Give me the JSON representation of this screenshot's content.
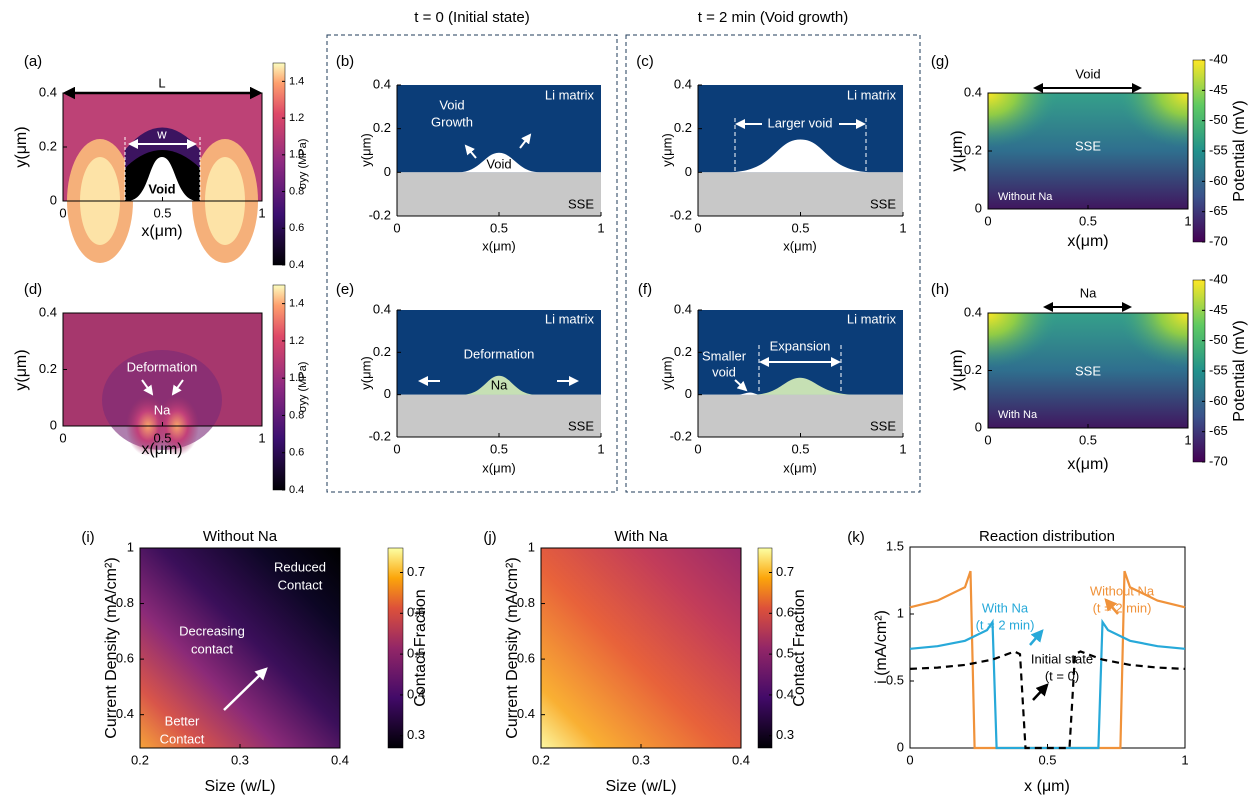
{
  "headers": [
    "t = 0 (Initial state)",
    "t = 2 min (Void growth)"
  ],
  "chart_data": [
    {
      "type": "contour",
      "panel": "(a)",
      "xlabel": "x(μm)",
      "ylabel": "y(μm)",
      "xlim": [
        0,
        1
      ],
      "ylim": [
        0,
        0.4
      ],
      "xticks": [
        0,
        0.5,
        1
      ],
      "yticks": [
        0,
        0.2,
        0.4
      ],
      "colorbar": {
        "label": "σyy (MPa)",
        "colormap": "magma",
        "lim": [
          0.4,
          1.5
        ],
        "ticks": [
          0.4,
          0.6,
          0.8,
          {
            "value": 1,
            "label": "1.0"
          },
          1.2,
          1.4
        ]
      },
      "annotations": [
        "L",
        "w",
        "Void"
      ]
    },
    {
      "type": "contour",
      "panel": "(d)",
      "xlabel": "x(μm)",
      "ylabel": "y(μm)",
      "xlim": [
        0,
        1
      ],
      "ylim": [
        0,
        0.4
      ],
      "xticks": [
        0,
        0.5,
        1
      ],
      "yticks": [
        0,
        0.2,
        0.4
      ],
      "colorbar": {
        "label": "σyy (MPa)",
        "colormap": "magma",
        "lim": [
          0.4,
          1.5
        ],
        "ticks": [
          0.4,
          0.6,
          0.8,
          {
            "value": 1,
            "label": "1.0"
          },
          1.2,
          1.4
        ]
      },
      "annotations": [
        "Deformation",
        "Na"
      ]
    },
    {
      "type": "contour",
      "panel": "(g)",
      "xlabel": "x(μm)",
      "ylabel": "y(μm)",
      "xlim": [
        0,
        1
      ],
      "ylim": [
        0,
        0.4
      ],
      "xticks": [
        0,
        0.5,
        1
      ],
      "yticks": [
        0,
        0.2,
        0.4
      ],
      "colorbar": {
        "label": "Potential (mV)",
        "colormap": "viridis",
        "lim": [
          -70,
          -40
        ],
        "ticks": [
          -70,
          -65,
          -60,
          -55,
          -50,
          -45,
          -40
        ]
      },
      "annotations": [
        "Void",
        "SSE",
        "Without Na"
      ]
    },
    {
      "type": "contour",
      "panel": "(h)",
      "xlabel": "x(μm)",
      "ylabel": "y(μm)",
      "xlim": [
        0,
        1
      ],
      "ylim": [
        0,
        0.4
      ],
      "xticks": [
        0,
        0.5,
        1
      ],
      "yticks": [
        0,
        0.2,
        0.4
      ],
      "colorbar": {
        "label": "Potential (mV)",
        "colormap": "viridis",
        "lim": [
          -70,
          -40
        ],
        "ticks": [
          -70,
          -65,
          -60,
          -55,
          -50,
          -45,
          -40
        ]
      },
      "annotations": [
        "Na",
        "SSE",
        "With Na"
      ]
    },
    {
      "type": "schematic",
      "panel": "(b)",
      "xlabel": "x(μm)",
      "ylabel": "y(μm)",
      "xlim": [
        0,
        1
      ],
      "ylim": [
        -0.2,
        0.4
      ],
      "xticks": [
        0,
        0.5,
        1
      ],
      "yticks": [
        -0.2,
        0,
        0.2,
        0.4
      ],
      "annotations": [
        "Li matrix",
        "Void",
        "Growth",
        "Void",
        "SSE"
      ]
    },
    {
      "type": "schematic",
      "panel": "(c)",
      "xlabel": "x(μm)",
      "ylabel": "y(μm)",
      "xlim": [
        0,
        1
      ],
      "ylim": [
        -0.2,
        0.4
      ],
      "xticks": [
        0,
        0.5,
        1
      ],
      "yticks": [
        -0.2,
        0,
        0.2,
        0.4
      ],
      "annotations": [
        "Li matrix",
        "Larger void",
        "SSE"
      ]
    },
    {
      "type": "schematic",
      "panel": "(e)",
      "xlabel": "x(μm)",
      "ylabel": "y(μm)",
      "xlim": [
        0,
        1
      ],
      "ylim": [
        -0.2,
        0.4
      ],
      "xticks": [
        0,
        0.5,
        1
      ],
      "yticks": [
        -0.2,
        0,
        0.2,
        0.4
      ],
      "annotations": [
        "Li matrix",
        "Deformation",
        "Na",
        "SSE"
      ]
    },
    {
      "type": "schematic",
      "panel": "(f)",
      "xlabel": "x(μm)",
      "ylabel": "y(μm)",
      "xlim": [
        0,
        1
      ],
      "ylim": [
        -0.2,
        0.4
      ],
      "xticks": [
        0,
        0.5,
        1
      ],
      "yticks": [
        -0.2,
        0,
        0.2,
        0.4
      ],
      "annotations": [
        "Li matrix",
        "Smaller",
        "void",
        "Expansion",
        "SSE"
      ]
    },
    {
      "type": "heatmap",
      "panel": "(i)",
      "title": "Without Na",
      "xlabel": "Size (w/L)",
      "ylabel": "Current Density (mA/cm²)",
      "xlim": [
        0.2,
        0.4
      ],
      "ylim": [
        0.28,
        1
      ],
      "xticks": [
        0.2,
        0.3,
        0.4
      ],
      "yticks": [
        0.4,
        0.6,
        0.8,
        1
      ],
      "colorbar": {
        "label": "Contact Fraction",
        "colormap": "inferno",
        "lim": [
          0.27,
          0.76
        ],
        "ticks": [
          0.3,
          0.4,
          0.5,
          0.6,
          0.7
        ]
      },
      "annotations": [
        "Reduced",
        "Contact",
        "Decreasing",
        "contact",
        "Better",
        "Contact"
      ]
    },
    {
      "type": "heatmap",
      "panel": "(j)",
      "title": "With Na",
      "xlabel": "Size (w/L)",
      "ylabel": "Current Density (mA/cm²)",
      "xlim": [
        0.2,
        0.4
      ],
      "ylim": [
        0.28,
        1
      ],
      "xticks": [
        0.2,
        0.3,
        0.4
      ],
      "yticks": [
        0.4,
        0.6,
        0.8,
        1
      ],
      "colorbar": {
        "label": "Contact Fraction",
        "colormap": "inferno",
        "lim": [
          0.27,
          0.76
        ],
        "ticks": [
          0.3,
          0.4,
          0.5,
          0.6,
          0.7
        ]
      }
    },
    {
      "type": "line",
      "panel": "(k)",
      "title": "Reaction distribution",
      "xlabel": "x (μm)",
      "ylabel": "i (mA/cm²)",
      "xlim": [
        0,
        1
      ],
      "ylim": [
        0,
        1.5
      ],
      "xticks": [
        0,
        0.5,
        1
      ],
      "yticks": [
        0,
        0.5,
        1,
        1.5
      ],
      "series": [
        {
          "name": "Without Na",
          "sublabel": "(t = 2 min)",
          "color": "#f0923a",
          "style": "solid",
          "x": [
            0,
            0.1,
            0.2,
            0.22,
            0.235,
            0.765,
            0.78,
            0.8,
            0.9,
            1
          ],
          "values": [
            1.05,
            1.1,
            1.2,
            1.32,
            0,
            0,
            1.32,
            1.2,
            1.1,
            1.05
          ]
        },
        {
          "name": "With Na",
          "sublabel": "(t = 2 min)",
          "color": "#27a9d9",
          "style": "solid",
          "x": [
            0,
            0.1,
            0.2,
            0.28,
            0.3,
            0.315,
            0.685,
            0.7,
            0.72,
            0.8,
            0.9,
            1
          ],
          "values": [
            0.74,
            0.76,
            0.8,
            0.88,
            0.94,
            0,
            0,
            0.94,
            0.88,
            0.8,
            0.76,
            0.74
          ]
        },
        {
          "name": "Initial state",
          "sublabel": "(t = 0)",
          "color": "#000000",
          "style": "dashed",
          "x": [
            0,
            0.1,
            0.2,
            0.3,
            0.38,
            0.4,
            0.42,
            0.58,
            0.6,
            0.62,
            0.7,
            0.8,
            0.9,
            1
          ],
          "values": [
            0.59,
            0.6,
            0.62,
            0.66,
            0.72,
            0.7,
            0,
            0,
            0.7,
            0.72,
            0.66,
            0.62,
            0.6,
            0.59
          ]
        }
      ]
    }
  ]
}
